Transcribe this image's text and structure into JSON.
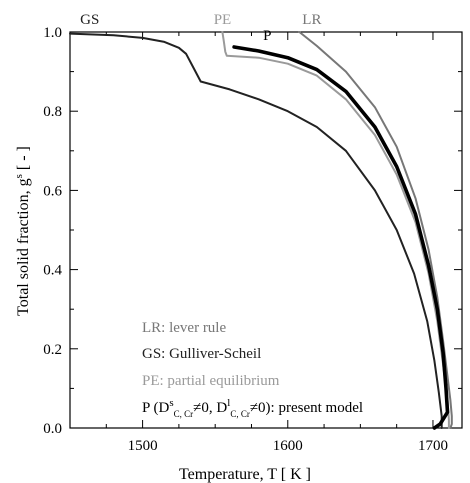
{
  "chart_data": {
    "type": "line",
    "xlabel": "Temperature, T [ K ]",
    "ylabel_main": "Total solid fraction, g",
    "ylabel_sup": "s",
    "ylabel_tail": " [ - ]",
    "xlim": [
      1450,
      1720
    ],
    "ylim": [
      0.0,
      1.0
    ],
    "xticks": [
      1500,
      1600,
      1700
    ],
    "yticks": [
      0.0,
      0.2,
      0.4,
      0.6,
      0.8,
      1.0
    ],
    "xtick_labels": [
      "1500",
      "1600",
      "1700"
    ],
    "ytick_labels": [
      "0.0",
      "0.2",
      "0.4",
      "0.6",
      "0.8",
      "1.0"
    ],
    "colors": {
      "LR": "#777777",
      "GS": "#222222",
      "PE": "#9a9a9a",
      "P": "#000000"
    },
    "series": [
      {
        "key": "LR",
        "x": [
          1608,
          1620,
          1640,
          1660,
          1675,
          1688,
          1697,
          1703,
          1707,
          1710,
          1712,
          1713,
          1713,
          1712
        ],
        "y": [
          1.0,
          0.965,
          0.9,
          0.81,
          0.71,
          0.58,
          0.45,
          0.33,
          0.22,
          0.13,
          0.07,
          0.03,
          0.01,
          0.0
        ]
      },
      {
        "key": "GS",
        "x": [
          1450,
          1480,
          1500,
          1515,
          1525,
          1530,
          1535,
          1540,
          1560,
          1580,
          1600,
          1620,
          1640,
          1660,
          1675,
          1687,
          1696,
          1701,
          1704,
          1706,
          1706
        ],
        "y": [
          0.996,
          0.992,
          0.985,
          0.975,
          0.96,
          0.945,
          0.91,
          0.875,
          0.855,
          0.83,
          0.8,
          0.76,
          0.7,
          0.6,
          0.5,
          0.39,
          0.27,
          0.17,
          0.09,
          0.03,
          0.0
        ]
      },
      {
        "key": "PE",
        "x": [
          1555,
          1556,
          1557,
          1558,
          1580,
          1600,
          1620,
          1640,
          1660,
          1675,
          1688,
          1697,
          1703,
          1707,
          1710,
          1711,
          1711
        ],
        "y": [
          1.0,
          0.975,
          0.95,
          0.94,
          0.935,
          0.92,
          0.89,
          0.83,
          0.74,
          0.64,
          0.52,
          0.39,
          0.27,
          0.16,
          0.07,
          0.02,
          0.0
        ]
      },
      {
        "key": "P",
        "x": [
          1563,
          1580,
          1600,
          1620,
          1640,
          1660,
          1675,
          1688,
          1697,
          1703,
          1707,
          1709,
          1710,
          1705,
          1701
        ],
        "y": [
          0.962,
          0.952,
          0.935,
          0.905,
          0.85,
          0.76,
          0.66,
          0.54,
          0.41,
          0.3,
          0.19,
          0.1,
          0.04,
          0.01,
          0.0
        ]
      }
    ],
    "annotations": [
      {
        "key": "GS",
        "text": "GS",
        "x": 1457,
        "y": 1.02
      },
      {
        "key": "PE",
        "text": "PE",
        "x": 1549,
        "y": 1.02
      },
      {
        "key": "LR",
        "text": "LR",
        "x": 1610,
        "y": 1.02
      },
      {
        "key": "P",
        "text": "P",
        "x": 1583,
        "y": 0.98
      }
    ],
    "legend": {
      "placement": "bottom-left",
      "items": [
        {
          "key": "LR",
          "text": "LR: lever rule"
        },
        {
          "key": "GS",
          "text": "GS: Gulliver-Scheil"
        },
        {
          "key": "PE",
          "text": "PE: partial equilibrium"
        }
      ],
      "p_line": {
        "lead": "P (D",
        "sup1": "s",
        "sub1": "C, Cr",
        "mid": "≠0, D",
        "sup2": "l",
        "sub2": "C, Cr",
        "tail": "≠0): present model"
      }
    }
  }
}
